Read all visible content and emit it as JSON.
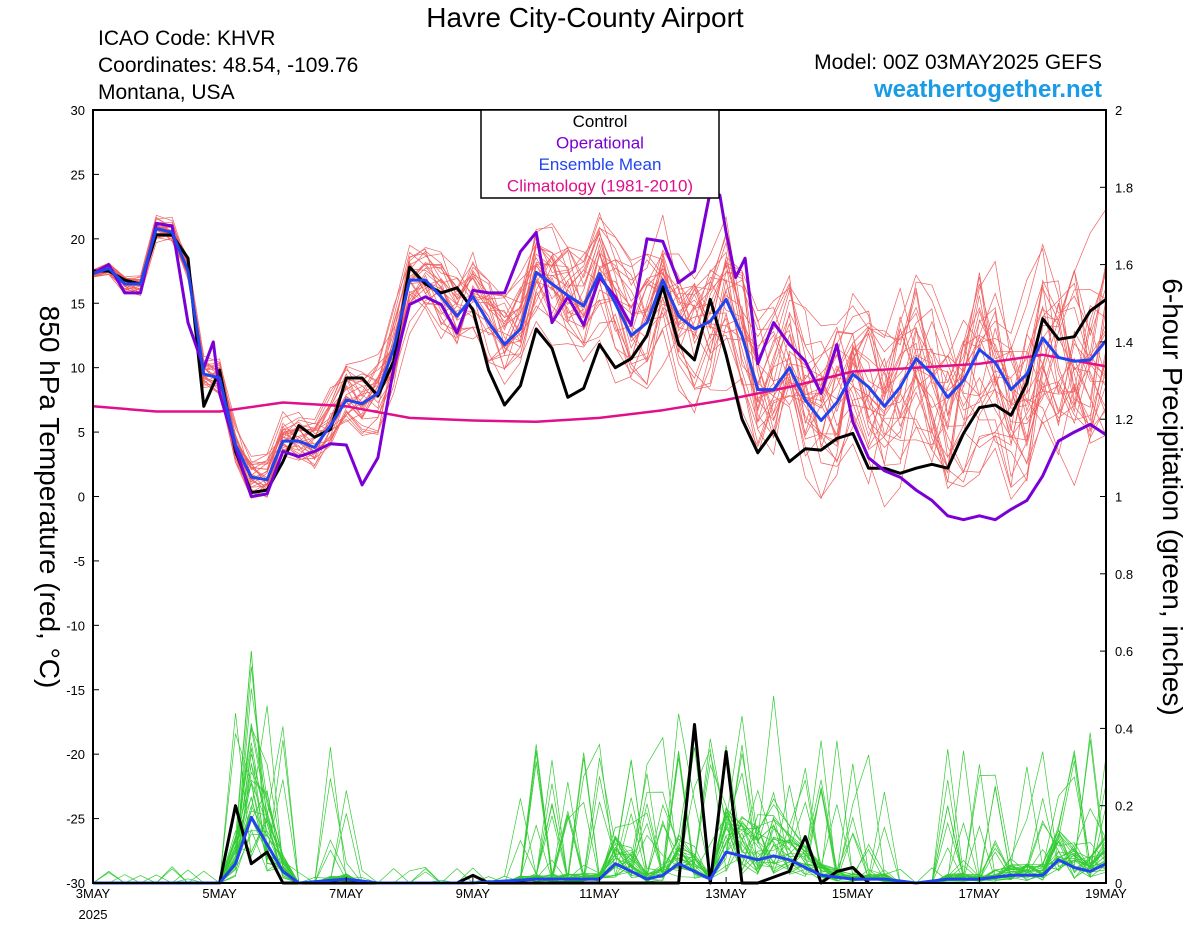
{
  "header": {
    "title": "Havre City-County Airport",
    "icao": "ICAO Code: KHVR",
    "coordinates": "Coordinates: 48.54, -109.76",
    "region": "Montana, USA",
    "model": "Model: 00Z 03MAY2025 GEFS",
    "site": "weathertogether.net"
  },
  "colors": {
    "control": "#000000",
    "operational": "#7a00d6",
    "ensemble_mean": "#2244ee",
    "climatology": "#e0108a",
    "ensemble_temp": "#f06060",
    "ensemble_precip": "#33cc33",
    "site": "#1a9be6"
  },
  "chart_data": {
    "type": "line",
    "ylabel": "850 hPa Temperature (red, °C)",
    "y2label": "6-hour Precipitation (green, inches)",
    "xlim": [
      0,
      16
    ],
    "ylim": [
      -30,
      30
    ],
    "y2lim": [
      0,
      2
    ],
    "x_ticks": [
      {
        "x": 0,
        "label": "3MAY",
        "sub": "2025"
      },
      {
        "x": 2,
        "label": "5MAY"
      },
      {
        "x": 4,
        "label": "7MAY"
      },
      {
        "x": 6,
        "label": "9MAY"
      },
      {
        "x": 8,
        "label": "11MAY"
      },
      {
        "x": 10,
        "label": "13MAY"
      },
      {
        "x": 12,
        "label": "15MAY"
      },
      {
        "x": 14,
        "label": "17MAY"
      },
      {
        "x": 16,
        "label": "19MAY"
      }
    ],
    "y_ticks": [
      30,
      25,
      20,
      15,
      10,
      5,
      0,
      -5,
      -10,
      -15,
      -20,
      -25,
      -30
    ],
    "y2_ticks": [
      {
        "v": 2,
        "label": "2"
      },
      {
        "v": 1.8,
        "label": "1.8"
      },
      {
        "v": 1.6,
        "label": "1.6"
      },
      {
        "v": 1.4,
        "label": "1.4"
      },
      {
        "v": 1.2,
        "label": "1.2"
      },
      {
        "v": 1,
        "label": "1"
      },
      {
        "v": 0.8,
        "label": "0.8"
      },
      {
        "v": 0.6,
        "label": "0.6"
      },
      {
        "v": 0.4,
        "label": "0.4"
      },
      {
        "v": 0.2,
        "label": "0.2"
      },
      {
        "v": 0,
        "label": "0"
      }
    ],
    "legend": {
      "placement": "top-center",
      "entries": [
        {
          "name": "Control",
          "color": "#000000"
        },
        {
          "name": "Operational",
          "color": "#7a00d6"
        },
        {
          "name": "Ensemble Mean",
          "color": "#2244ee"
        },
        {
          "name": "Climatology (1981-2010)",
          "color": "#e0108a"
        }
      ]
    },
    "series": [
      {
        "name": "Climatology (1981-2010)",
        "axis": "temp",
        "color": "#e0108a",
        "x": [
          0,
          1,
          2,
          3,
          4,
          5,
          6,
          7,
          8,
          9,
          10,
          11,
          12,
          13,
          14,
          15,
          16
        ],
        "y": [
          7,
          6.6,
          6.6,
          7.3,
          7,
          6.1,
          5.9,
          5.8,
          6.1,
          6.7,
          7.5,
          8.5,
          9.7,
          10,
          10.3,
          11,
          10.1
        ]
      },
      {
        "name": "Control",
        "axis": "temp",
        "color": "#000000",
        "x": [
          0,
          0.25,
          0.5,
          0.75,
          1,
          1.25,
          1.5,
          1.75,
          2,
          2.25,
          2.5,
          2.75,
          3,
          3.25,
          3.5,
          3.75,
          4,
          4.25,
          4.5,
          4.75,
          5,
          5.25,
          5.5,
          5.75,
          6,
          6.25,
          6.5,
          6.75,
          7,
          7.25,
          7.5,
          7.75,
          8,
          8.25,
          8.5,
          8.75,
          9,
          9.25,
          9.5,
          9.75,
          10,
          10.25,
          10.5,
          10.75,
          11,
          11.25,
          11.5,
          11.75,
          12,
          12.25,
          12.5,
          12.75,
          13,
          13.25,
          13.5,
          13.75,
          14,
          14.25,
          14.5,
          14.75,
          15,
          15.25,
          15.5,
          15.75,
          16
        ],
        "y": [
          17.5,
          17.5,
          16.8,
          16.5,
          20.3,
          20.3,
          18.5,
          7,
          9.8,
          3.5,
          0.3,
          0.5,
          2.7,
          5.5,
          4.6,
          5.2,
          9.2,
          9.2,
          7.8,
          10.5,
          17.8,
          16.5,
          15.8,
          16.2,
          14.5,
          9.8,
          7.1,
          8.6,
          13,
          11.5,
          7.7,
          8.4,
          11.8,
          10,
          10.7,
          12.5,
          16.3,
          11.8,
          10.6,
          15.3,
          11,
          6,
          3.4,
          5.1,
          2.7,
          3.7,
          3.6,
          4.5,
          4.9,
          2.2,
          2.2,
          1.8,
          2.2,
          2.5,
          2.2,
          4.9,
          6.9,
          7.1,
          6.3,
          8.8,
          13.8,
          12.2,
          12.4,
          14.4,
          15.3
        ]
      },
      {
        "name": "Operational",
        "axis": "temp",
        "color": "#7a00d6",
        "x": [
          0,
          0.25,
          0.5,
          0.75,
          1,
          1.25,
          1.5,
          1.75,
          1.9,
          2,
          2.25,
          2.5,
          2.75,
          3,
          3.25,
          3.5,
          3.75,
          4,
          4.25,
          4.5,
          4.75,
          5,
          5.25,
          5.5,
          5.75,
          6,
          6.25,
          6.5,
          6.75,
          7,
          7.25,
          7.5,
          7.75,
          8,
          8.25,
          8.5,
          8.75,
          9,
          9.25,
          9.5,
          9.75,
          9.9,
          10,
          10.15,
          10.3,
          10.5,
          10.75,
          11,
          11.25,
          11.5,
          11.75,
          12,
          12.25,
          12.5,
          12.75,
          13,
          13.25,
          13.5,
          13.75,
          14,
          14.25,
          14.5,
          14.75,
          15,
          15.25,
          15.5,
          15.75,
          16
        ],
        "y": [
          17.3,
          18,
          15.8,
          15.8,
          21.2,
          21,
          13.5,
          10,
          12,
          8,
          3.8,
          0,
          0.2,
          3.5,
          3.1,
          3.5,
          4.1,
          4,
          0.9,
          3,
          10,
          14.9,
          15.5,
          14.9,
          12.7,
          16,
          15.8,
          15.8,
          19,
          20.5,
          13.5,
          15.5,
          13.3,
          17,
          15.5,
          13.3,
          20,
          19.8,
          16.6,
          17.5,
          23.7,
          23.4,
          20.5,
          17,
          18.5,
          10.3,
          13.5,
          11.8,
          10.5,
          8,
          11.8,
          5.8,
          3,
          2,
          1.5,
          0.5,
          -0.3,
          -1.5,
          -1.8,
          -1.5,
          -1.8,
          -1,
          -0.3,
          1.6,
          4.3,
          5,
          5.6,
          4.8
        ]
      },
      {
        "name": "Ensemble Mean",
        "axis": "temp",
        "color": "#2244ee",
        "x": [
          0,
          0.25,
          0.5,
          0.75,
          1,
          1.25,
          1.5,
          1.75,
          2,
          2.25,
          2.5,
          2.75,
          3,
          3.25,
          3.5,
          3.75,
          4,
          4.25,
          4.5,
          4.75,
          5,
          5.25,
          5.5,
          5.75,
          6,
          6.25,
          6.5,
          6.75,
          7,
          7.25,
          7.5,
          7.75,
          8,
          8.25,
          8.5,
          8.75,
          9,
          9.25,
          9.5,
          9.75,
          10,
          10.25,
          10.5,
          10.75,
          11,
          11.25,
          11.5,
          11.75,
          12,
          12.25,
          12.5,
          12.75,
          13,
          13.25,
          13.5,
          13.75,
          14,
          14.25,
          14.5,
          14.75,
          15,
          15.25,
          15.5,
          15.75,
          16
        ],
        "y": [
          17.3,
          17.7,
          16.5,
          16.5,
          20.8,
          20.5,
          17.5,
          9.5,
          9.2,
          4,
          1.5,
          1.3,
          4.3,
          4.3,
          3.8,
          5.5,
          7.5,
          7.2,
          8,
          11.5,
          16.8,
          16.8,
          15.5,
          14,
          15.5,
          13.5,
          11.8,
          13,
          17.4,
          16.5,
          15.6,
          14.8,
          17.3,
          15,
          12.5,
          13.5,
          16.8,
          14,
          13,
          13.6,
          15.3,
          12.5,
          8.3,
          8.3,
          10,
          7.5,
          5.9,
          7.3,
          9.5,
          8.5,
          7,
          8.5,
          10.7,
          9.5,
          7.7,
          9,
          11.4,
          10.4,
          8.3,
          9.5,
          12.3,
          10.8,
          10.5,
          10.6,
          12.1
        ]
      },
      {
        "name": "Ensemble Mean",
        "axis": "precip",
        "color": "#2244ee",
        "x": [
          0,
          1,
          2,
          2.25,
          2.5,
          2.75,
          3,
          3.25,
          4,
          4.5,
          5,
          6,
          7,
          8,
          8.25,
          8.5,
          8.75,
          9,
          9.25,
          9.5,
          9.75,
          10,
          10.25,
          10.5,
          10.75,
          11,
          11.25,
          11.5,
          12,
          12.5,
          13,
          13.5,
          14,
          14.5,
          14.75,
          15,
          15.25,
          15.5,
          15.75,
          16
        ],
        "y": [
          0,
          0,
          0,
          0.05,
          0.17,
          0.1,
          0.03,
          0,
          0.01,
          0,
          0,
          0,
          0.01,
          0.01,
          0.05,
          0.03,
          0.01,
          0.02,
          0.05,
          0.03,
          0.01,
          0.08,
          0.07,
          0.06,
          0.07,
          0.06,
          0.04,
          0.02,
          0.01,
          0.01,
          0,
          0.01,
          0.01,
          0.02,
          0.02,
          0.02,
          0.06,
          0.04,
          0.03,
          0.05
        ]
      },
      {
        "name": "Control",
        "axis": "precip",
        "color": "#000000",
        "x": [
          0,
          2,
          2.25,
          2.5,
          2.75,
          3,
          3.25,
          5.75,
          6,
          6.25,
          9.25,
          9.5,
          9.75,
          10,
          10.25,
          10.5,
          11,
          11.25,
          11.5,
          11.75,
          12,
          12.25
        ],
        "y": [
          0,
          0,
          0.2,
          0.05,
          0.08,
          0,
          0,
          0,
          0.02,
          0,
          0,
          0.41,
          0,
          0.34,
          0,
          0,
          0.03,
          0.12,
          0,
          0.03,
          0.04,
          0
        ]
      }
    ]
  }
}
